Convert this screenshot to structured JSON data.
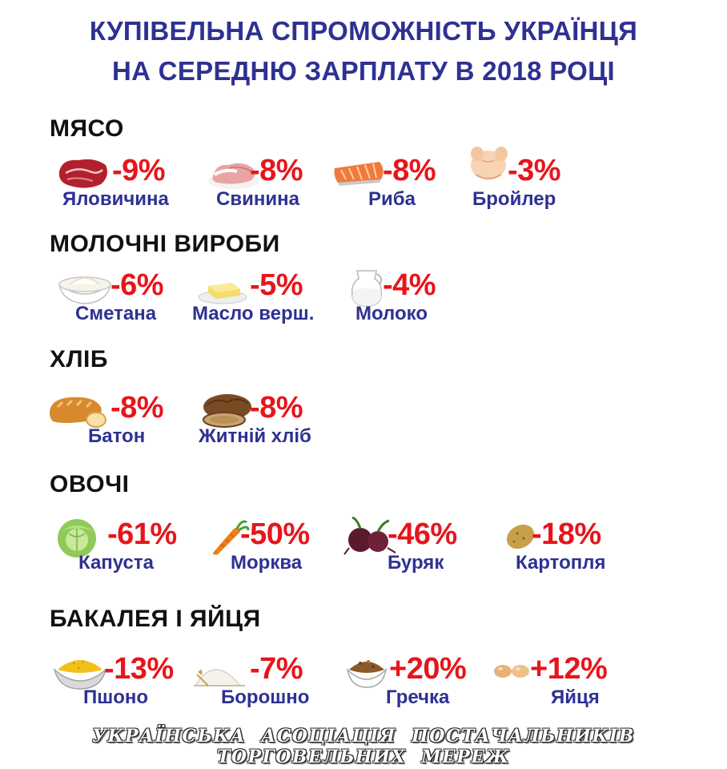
{
  "title": {
    "line1": "КУПІВЕЛЬНА СПРОМОЖНІСТЬ УКРАЇНЦЯ",
    "line2": "НА СЕРЕДНЮ ЗАРПЛАТУ В 2018 РОЦІ"
  },
  "sections": {
    "meat": {
      "label": "МЯСО",
      "items": [
        {
          "name": "Яловичина",
          "pct": "-9%",
          "icon": "beef-icon"
        },
        {
          "name": "Свинина",
          "pct": "-8%",
          "icon": "pork-icon"
        },
        {
          "name": "Риба",
          "pct": "-8%",
          "icon": "fish-icon"
        },
        {
          "name": "Бройлер",
          "pct": "-3%",
          "icon": "chicken-icon"
        }
      ]
    },
    "dairy": {
      "label": "МОЛОЧНІ ВИРОБИ",
      "items": [
        {
          "name": "Сметана",
          "pct": "-6%",
          "icon": "sour-cream-icon"
        },
        {
          "name": "Масло верш.",
          "pct": "-5%",
          "icon": "butter-icon"
        },
        {
          "name": "Молоко",
          "pct": "-4%",
          "icon": "milk-icon"
        }
      ]
    },
    "bread": {
      "label": "ХЛІБ",
      "items": [
        {
          "name": "Батон",
          "pct": "-8%",
          "icon": "loaf-icon"
        },
        {
          "name": "Житній хліб",
          "pct": "-8%",
          "icon": "rye-bread-icon"
        }
      ]
    },
    "vegetables": {
      "label": "ОВОЧІ",
      "items": [
        {
          "name": "Капуста",
          "pct": "-61%",
          "icon": "cabbage-icon"
        },
        {
          "name": "Морква",
          "pct": "-50%",
          "icon": "carrot-icon"
        },
        {
          "name": "Буряк",
          "pct": "-46%",
          "icon": "beet-icon"
        },
        {
          "name": "Картопля",
          "pct": "-18%",
          "icon": "potato-icon"
        }
      ]
    },
    "grocery": {
      "label": "БАКАЛЕЯ І ЯЙЦЯ",
      "items": [
        {
          "name": "Пшоно",
          "pct": "-13%",
          "icon": "millet-icon"
        },
        {
          "name": "Борошно",
          "pct": "-7%",
          "icon": "flour-icon"
        },
        {
          "name": "Гречка",
          "pct": "+20%",
          "icon": "buckwheat-icon"
        },
        {
          "name": "Яйця",
          "pct": "+12%",
          "icon": "eggs-icon"
        }
      ]
    }
  },
  "footer": "УКРАЇНСЬКА АСОЦІАЦІЯ ПОСТАЧАЛЬНИКІВ ТОРГОВЕЛЬНИХ МЕРЕЖ",
  "colors": {
    "title": "#2e3192",
    "percent": "#e8141b",
    "item_name": "#2e3192",
    "section": "#111111"
  }
}
